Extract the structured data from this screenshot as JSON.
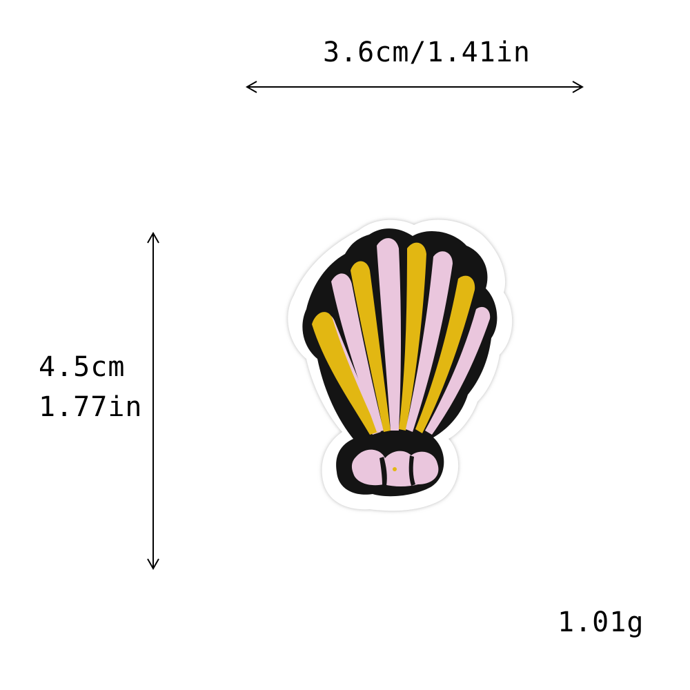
{
  "dimensions": {
    "width_label": "3.6cm/1.41in",
    "height_cm_label": "4.5cm",
    "height_in_label": "1.77in"
  },
  "weight_label": "1.01g",
  "patch": {
    "icon": "seashell-embroidered-patch",
    "colors": {
      "outline": "#111111",
      "yellow": "#e2b712",
      "pink": "#eac6dd",
      "felt": "#ffffff"
    }
  }
}
